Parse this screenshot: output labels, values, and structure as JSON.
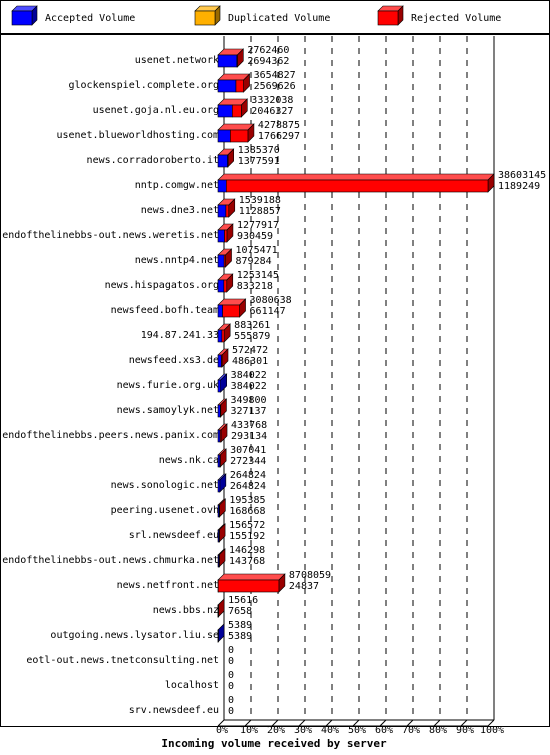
{
  "chart_data": {
    "type": "bar",
    "title": "",
    "xlabel": "Incoming volume received by server",
    "ylabel": "",
    "xlim_percent": [
      0,
      100
    ],
    "x_ticks": [
      "0%",
      "10%",
      "20%",
      "30%",
      "40%",
      "50%",
      "60%",
      "70%",
      "80%",
      "90%",
      "100%"
    ],
    "legend_position": "top",
    "legend": [
      {
        "key": "accepted",
        "label": "Accepted Volume",
        "color": "#0000ff"
      },
      {
        "key": "duplicated",
        "label": "Duplicated Volume",
        "color": "#ffb000"
      },
      {
        "key": "rejected",
        "label": "Rejected Volume",
        "color": "#ff0000"
      }
    ],
    "max_total": 38603145,
    "categories": [
      "usenet.network",
      "glockenspiel.complete.org",
      "usenet.goja.nl.eu.org",
      "usenet.blueworldhosting.com",
      "news.corradoroberto.it",
      "nntp.comgw.net",
      "news.dne3.net",
      "endofthelinebbs-out.news.weretis.net",
      "news.nntp4.net",
      "news.hispagatos.org",
      "newsfeed.bofh.team",
      "194.87.241.33",
      "newsfeed.xs3.de",
      "news.furie.org.uk",
      "news.samoylyk.net",
      "endofthelinebbs.peers.news.panix.com",
      "news.nk.ca",
      "news.sonologic.net",
      "peering.usenet.ovh",
      "srl.newsdeef.eu",
      "endofthelinebbs-out.news.chmurka.net",
      "news.netfront.net",
      "news.bbs.nz",
      "outgoing.news.lysator.liu.se",
      "eotl-out.news.tnetconsulting.net",
      "localhost",
      "srv.newsdeef.eu"
    ],
    "total_labels": [
      "2762460",
      "3654827",
      "3332038",
      "4278875",
      "1385370",
      "38603145",
      "1539188",
      "1277917",
      "1075471",
      "1253145",
      "3080638",
      "883261",
      "572472",
      "384022",
      "349800",
      "433768",
      "307041",
      "264824",
      "195385",
      "156572",
      "146298",
      "8708059",
      "15616",
      "5389",
      "0",
      "0",
      "0"
    ],
    "accepted_labels": [
      "2694362",
      "2569626",
      "2046327",
      "1766297",
      "1377591",
      "1189249",
      "1128857",
      "930459",
      "879284",
      "833218",
      "661147",
      "555879",
      "486301",
      "384022",
      "327137",
      "293134",
      "272344",
      "264824",
      "168668",
      "155192",
      "143768",
      "24837",
      "7658",
      "5389",
      "0",
      "0",
      "0"
    ],
    "series": [
      {
        "name": "Accepted Volume",
        "values": [
          2694362,
          2569626,
          2046327,
          1766297,
          1377591,
          1189249,
          1128857,
          930459,
          879284,
          833218,
          661147,
          555879,
          486301,
          384022,
          327137,
          293134,
          272344,
          264824,
          168668,
          155192,
          143768,
          24837,
          7658,
          5389,
          0,
          0,
          0
        ]
      },
      {
        "name": "Rejected Volume",
        "values": [
          68098,
          1085201,
          1285711,
          2512578,
          7779,
          37413896,
          410331,
          347458,
          196187,
          419927,
          2419491,
          327382,
          86171,
          0,
          22663,
          140634,
          34697,
          0,
          26717,
          1380,
          2530,
          8683222,
          7958,
          0,
          0,
          0,
          0
        ]
      }
    ]
  }
}
